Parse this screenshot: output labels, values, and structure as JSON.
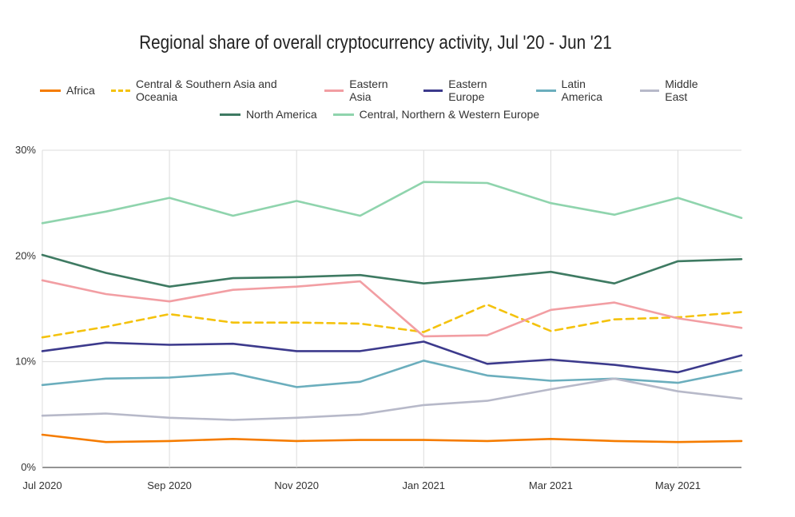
{
  "chart_data": {
    "type": "line",
    "title": "Regional share of overall cryptocurrency activity, Jul '20 - Jun '21",
    "xlabel": "",
    "ylabel": "",
    "ylim": [
      0,
      30
    ],
    "y_ticks": [
      "0%",
      "10%",
      "20%",
      "30%"
    ],
    "x": [
      "Jul 2020",
      "Aug 2020",
      "Sep 2020",
      "Oct 2020",
      "Nov 2020",
      "Dec 2020",
      "Jan 2021",
      "Feb 2021",
      "Mar 2021",
      "Apr 2021",
      "May 2021",
      "Jun 2021"
    ],
    "x_tick_labels": [
      "Jul 2020",
      "",
      "Sep 2020",
      "",
      "Nov 2020",
      "",
      "Jan 2021",
      "",
      "Mar 2021",
      "",
      "May 2021",
      ""
    ],
    "grid": true,
    "legend_position": "top",
    "series": [
      {
        "name": "Africa",
        "color": "#f57c00",
        "dashed": false,
        "values": [
          3.1,
          2.4,
          2.5,
          2.7,
          2.5,
          2.6,
          2.6,
          2.5,
          2.7,
          2.5,
          2.4,
          2.5
        ]
      },
      {
        "name": "Central & Southern Asia and Oceania",
        "color": "#f4c20d",
        "dashed": true,
        "values": [
          12.3,
          13.3,
          14.5,
          13.7,
          13.7,
          13.6,
          12.8,
          15.4,
          12.9,
          14.0,
          14.2,
          14.7
        ]
      },
      {
        "name": "Eastern Asia",
        "color": "#f29ea3",
        "dashed": false,
        "values": [
          17.7,
          16.4,
          15.7,
          16.8,
          17.1,
          17.6,
          12.4,
          12.5,
          14.9,
          15.6,
          14.1,
          13.2
        ]
      },
      {
        "name": "Eastern Europe",
        "color": "#3c3a8c",
        "dashed": false,
        "values": [
          11.0,
          11.8,
          11.6,
          11.7,
          11.0,
          11.0,
          11.9,
          9.8,
          10.2,
          9.7,
          9.0,
          10.6
        ]
      },
      {
        "name": "Latin America",
        "color": "#6baebd",
        "dashed": false,
        "values": [
          7.8,
          8.4,
          8.5,
          8.9,
          7.6,
          8.1,
          10.1,
          8.7,
          8.2,
          8.4,
          8.0,
          9.2
        ]
      },
      {
        "name": "Middle East",
        "color": "#b7b9c9",
        "dashed": false,
        "values": [
          4.9,
          5.1,
          4.7,
          4.5,
          4.7,
          5.0,
          5.9,
          6.3,
          7.4,
          8.4,
          7.2,
          6.5
        ]
      },
      {
        "name": "North America",
        "color": "#3e7a62",
        "dashed": false,
        "values": [
          20.1,
          18.4,
          17.1,
          17.9,
          18.0,
          18.2,
          17.4,
          17.9,
          18.5,
          17.4,
          19.5,
          19.7
        ]
      },
      {
        "name": "Central, Northern & Western Europe",
        "color": "#8fd4ad",
        "dashed": false,
        "values": [
          23.1,
          24.2,
          25.5,
          23.8,
          25.2,
          23.8,
          27.0,
          26.9,
          25.0,
          23.9,
          25.5,
          23.6
        ]
      }
    ]
  }
}
